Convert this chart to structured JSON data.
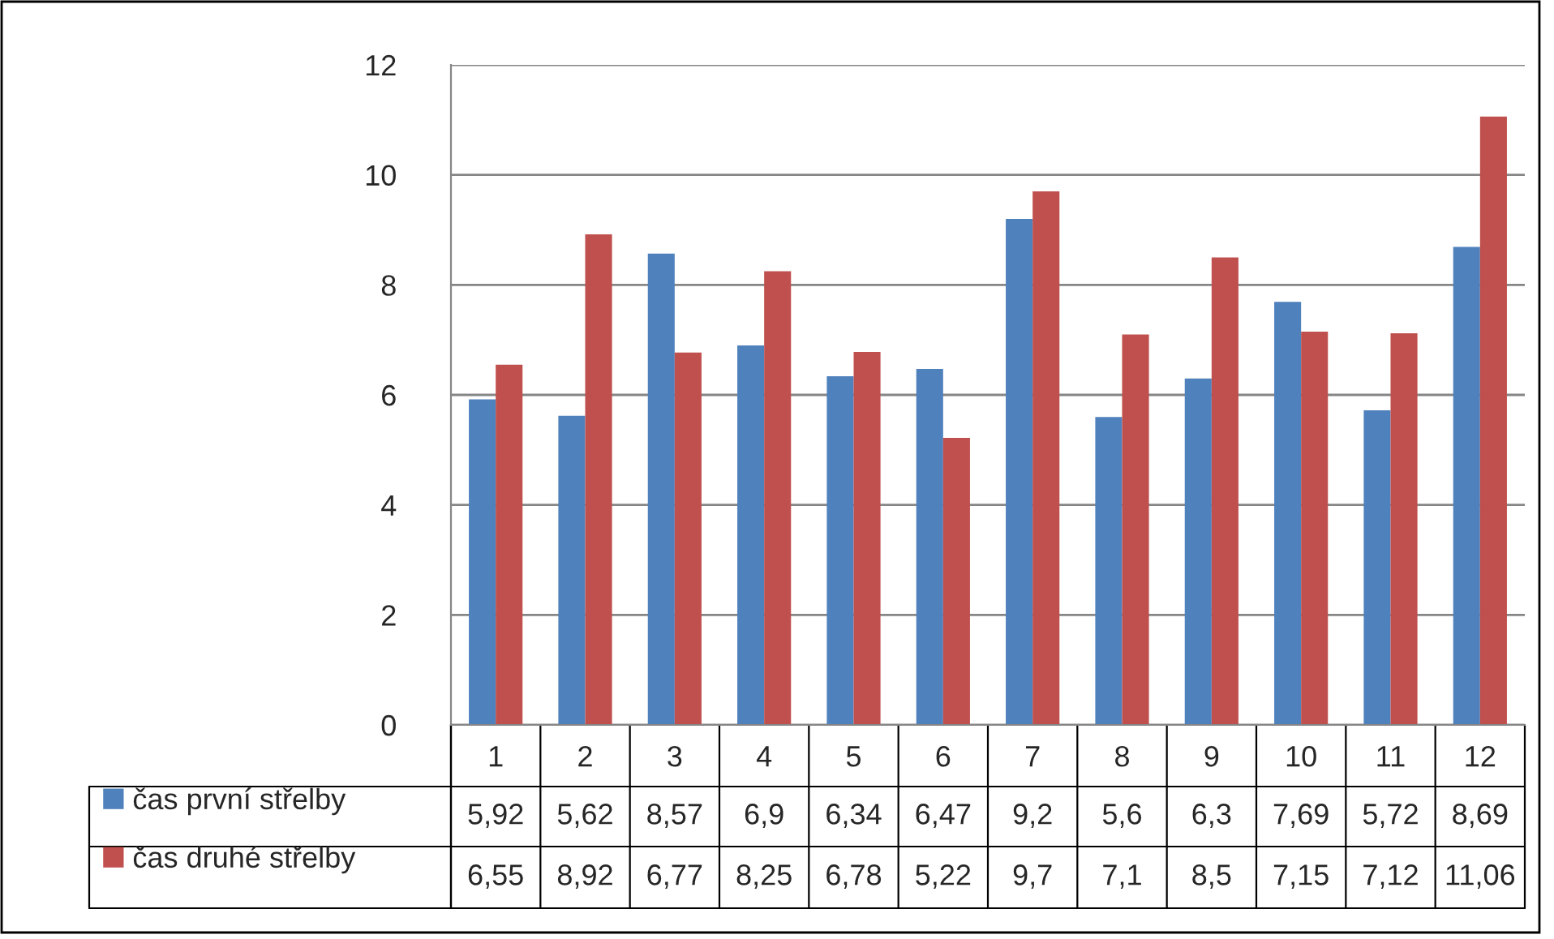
{
  "chart_data": {
    "type": "bar",
    "categories": [
      "1",
      "2",
      "3",
      "4",
      "5",
      "6",
      "7",
      "8",
      "9",
      "10",
      "11",
      "12"
    ],
    "series": [
      {
        "name": "čas první střelby",
        "color": "#4f81bd",
        "values": [
          5.92,
          5.62,
          8.57,
          6.9,
          6.34,
          6.47,
          9.2,
          5.6,
          6.3,
          7.69,
          5.72,
          8.69
        ],
        "value_labels": [
          "5,92",
          "5,62",
          "8,57",
          "6,9",
          "6,34",
          "6,47",
          "9,2",
          "5,6",
          "6,3",
          "7,69",
          "5,72",
          "8,69"
        ]
      },
      {
        "name": "čas druhé střelby",
        "color": "#c0504d",
        "values": [
          6.55,
          8.92,
          6.77,
          8.25,
          6.78,
          5.22,
          9.7,
          7.1,
          8.5,
          7.15,
          7.12,
          11.06
        ],
        "value_labels": [
          "6,55",
          "8,92",
          "6,77",
          "8,25",
          "6,78",
          "5,22",
          "9,7",
          "7,1",
          "8,5",
          "7,15",
          "7,12",
          "11,06"
        ]
      }
    ],
    "ylim": [
      0,
      12
    ],
    "yticks": [
      0,
      2,
      4,
      6,
      8,
      10,
      12
    ],
    "grid": "y",
    "legend": "bottom left"
  }
}
